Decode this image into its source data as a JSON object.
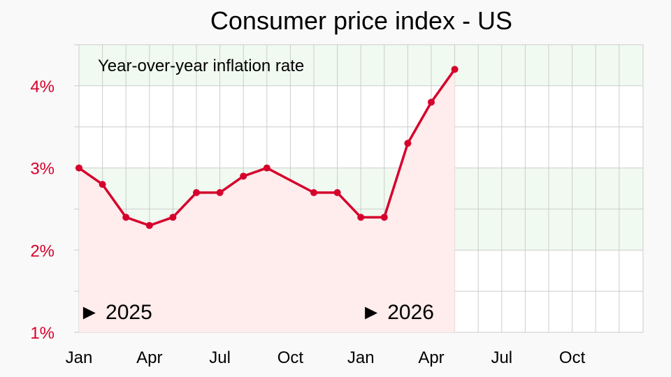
{
  "chart_data": {
    "type": "line",
    "title": "Consumer price index - US",
    "subtitle": "Year-over-year inflation rate",
    "x": [
      "2025-01",
      "2025-02",
      "2025-03",
      "2025-04",
      "2025-05",
      "2025-06",
      "2025-07",
      "2025-08",
      "2025-09",
      "2025-11",
      "2025-12",
      "2026-01",
      "2026-02",
      "2026-03",
      "2026-04",
      "2026-05"
    ],
    "series": [
      {
        "values": [
          3.0,
          2.8,
          2.4,
          2.3,
          2.4,
          2.7,
          2.7,
          2.9,
          3.0,
          2.7,
          2.7,
          2.4,
          2.4,
          3.3,
          3.8,
          4.2
        ]
      }
    ],
    "xlim": [
      "2025-01",
      "2026-12"
    ],
    "ylim": [
      1,
      4.5
    ],
    "y_ticks": [
      {
        "value": 1,
        "label": "1%"
      },
      {
        "value": 2,
        "label": "2%"
      },
      {
        "value": 3,
        "label": "3%"
      },
      {
        "value": 4,
        "label": "4%"
      }
    ],
    "x_ticks": [
      {
        "month": "2025-01",
        "label": "Jan"
      },
      {
        "month": "2025-04",
        "label": "Apr"
      },
      {
        "month": "2025-07",
        "label": "Jul"
      },
      {
        "month": "2025-10",
        "label": "Oct"
      },
      {
        "month": "2026-01",
        "label": "Jan"
      },
      {
        "month": "2026-04",
        "label": "Apr"
      },
      {
        "month": "2026-07",
        "label": "Jul"
      },
      {
        "month": "2026-10",
        "label": "Oct"
      }
    ],
    "year_labels": [
      {
        "month": "2025-01",
        "label": "► 2025"
      },
      {
        "month": "2026-01",
        "label": "► 2026"
      }
    ],
    "grid": true,
    "colors": {
      "line": "#d6002c",
      "area": "#ffecec",
      "band_green": "#f0faf0",
      "band_white": "#ffffff",
      "grid": "#cccccc",
      "y_tick_text": "#d6002c"
    }
  }
}
